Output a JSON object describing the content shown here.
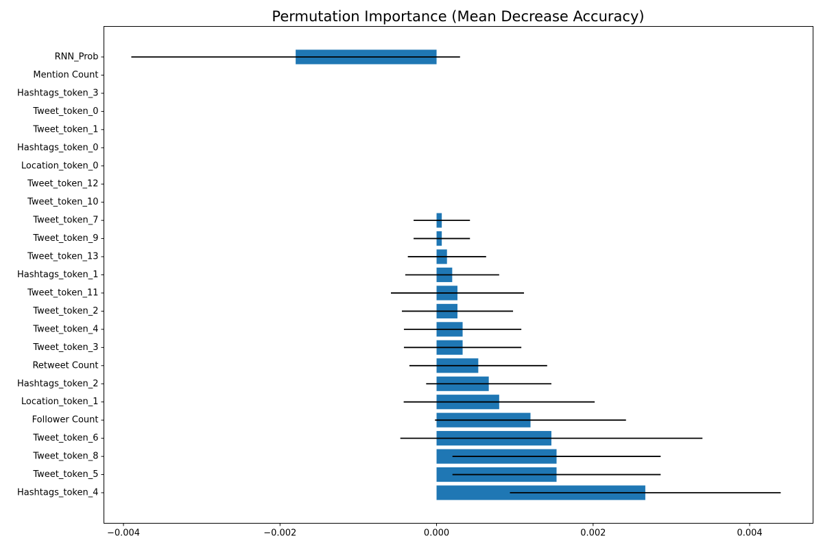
{
  "chart_data": {
    "type": "bar",
    "orientation": "horizontal",
    "title": "Permutation Importance (Mean Decrease Accuracy)",
    "xlabel": "",
    "ylabel": "",
    "xlim": [
      -0.00425,
      0.00481
    ],
    "xticks": [
      -0.004,
      -0.002,
      0.0,
      0.002,
      0.004
    ],
    "xtick_labels": [
      "−0.004",
      "−0.002",
      "0.000",
      "0.002",
      "0.004"
    ],
    "grid": false,
    "legend": "none",
    "bar_color": "#1f77b4",
    "error_color": "#000000",
    "categories": [
      "RNN_Prob",
      "Mention Count",
      "Hashtags_token_3",
      "Tweet_token_0",
      "Tweet_token_1",
      "Hashtags_token_0",
      "Location_token_0",
      "Tweet_token_12",
      "Tweet_token_10",
      "Tweet_token_7",
      "Tweet_token_9",
      "Tweet_token_13",
      "Hashtags_token_1",
      "Tweet_token_11",
      "Tweet_token_2",
      "Tweet_token_4",
      "Tweet_token_3",
      "Retweet Count",
      "Hashtags_token_2",
      "Location_token_1",
      "Follower Count",
      "Tweet_token_6",
      "Tweet_token_8",
      "Tweet_token_5",
      "Hashtags_token_4"
    ],
    "values": [
      -0.0018,
      0,
      0,
      0,
      0,
      0,
      0,
      0,
      0,
      6.67e-05,
      6.67e-05,
      0.000133,
      0.0002,
      0.000267,
      0.000267,
      0.000333,
      0.000333,
      0.000533,
      0.000667,
      0.0008,
      0.0012,
      0.001467,
      0.001533,
      0.001533,
      0.002667
    ],
    "errors": [
      0.0021,
      0,
      0,
      0,
      0,
      0,
      0,
      0,
      0,
      0.00036,
      0.00036,
      0.0005,
      0.0006,
      0.00085,
      0.00071,
      0.00075,
      0.00075,
      0.00088,
      0.0008,
      0.00122,
      0.00122,
      0.00193,
      0.00133,
      0.00133,
      0.00173
    ]
  }
}
